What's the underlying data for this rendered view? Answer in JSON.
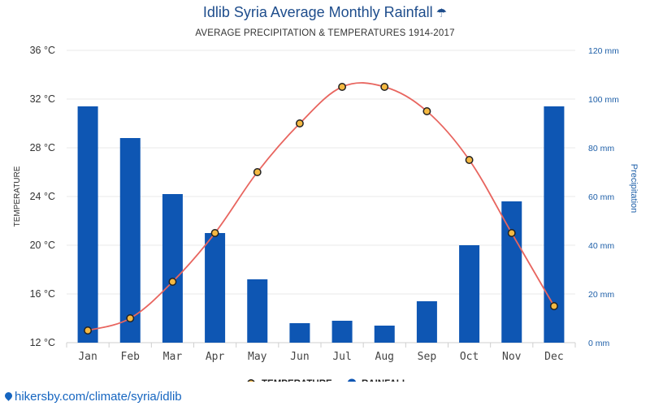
{
  "title": "Idlib Syria Average Monthly Rainfall",
  "title_icon": "umbrella-icon",
  "subtitle": "AVERAGE PRECIPITATION & TEMPERATURES 1914-2017",
  "watermark": "hikersby.com/climate/syria/idlib",
  "colors": {
    "bar": "#0e56b3",
    "line": "#e8655f",
    "marker_fill": "#f5b942",
    "title": "#1e4d8c",
    "right_axis": "#1e5fa8"
  },
  "chart_data": {
    "type": "bar",
    "title": "Idlib Syria Average Monthly Rainfall",
    "subtitle": "AVERAGE PRECIPITATION & TEMPERATURES 1914-2017",
    "categories": [
      "Jan",
      "Feb",
      "Mar",
      "Apr",
      "May",
      "Jun",
      "Jul",
      "Aug",
      "Sep",
      "Oct",
      "Nov",
      "Dec"
    ],
    "series": [
      {
        "name": "RAINFALL",
        "type": "bar",
        "axis": "right",
        "values": [
          97,
          84,
          61,
          45,
          26,
          8,
          9,
          7,
          17,
          40,
          58,
          97
        ]
      },
      {
        "name": "TEMPERATURE",
        "type": "line",
        "axis": "left",
        "values": [
          13,
          14,
          17,
          21,
          26,
          30,
          33,
          33,
          31,
          27,
          21,
          15
        ]
      }
    ],
    "left_axis": {
      "label": "TEMPERATURE",
      "ticks": [
        "36 °C",
        "32 °C",
        "28 °C",
        "24 °C",
        "20 °C",
        "16 °C",
        "12 °C"
      ],
      "ylim": [
        12,
        36
      ]
    },
    "right_axis": {
      "label": "Precipitation",
      "ticks": [
        "120 mm",
        "100 mm",
        "80 mm",
        "60 mm",
        "40 mm",
        "20 mm",
        "0 mm"
      ],
      "ylim": [
        0,
        120
      ]
    },
    "grid": true,
    "legend": {
      "placement": "bottom-center",
      "items": [
        "TEMPERATURE",
        "RAINFALL"
      ]
    }
  }
}
